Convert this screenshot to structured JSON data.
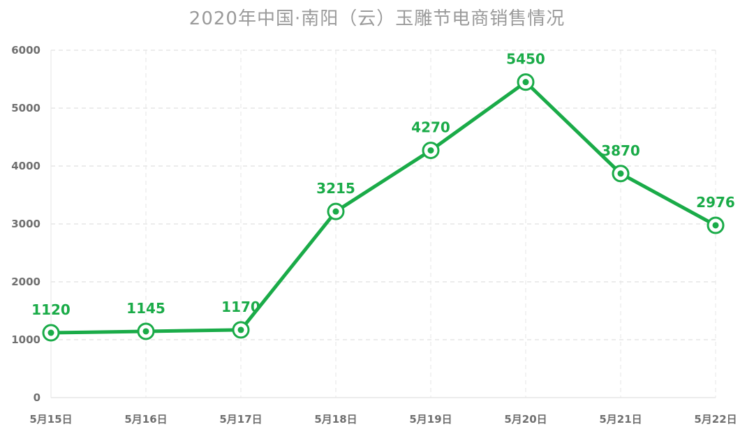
{
  "chart_data": {
    "type": "line",
    "title": "2020年中国·南阳（云）玉雕节电商销售情况",
    "xlabel": "",
    "ylabel": "",
    "categories": [
      "5月15日",
      "5月16日",
      "5月17日",
      "5月18日",
      "5月19日",
      "5月20日",
      "5月21日",
      "5月22日"
    ],
    "series": [
      {
        "values": [
          1120,
          1145,
          1170,
          3215,
          4270,
          5450,
          3870,
          2976
        ]
      }
    ],
    "ylim": [
      0,
      6000
    ],
    "yticks": [
      "0",
      "1000",
      "2000",
      "3000",
      "4000",
      "5000",
      "6000"
    ],
    "grid": true,
    "legend": "none",
    "colors": {
      "line": "#1aab48",
      "label": "#1aab48",
      "grid": "#d9d9d9",
      "axis_text": "#6f6f6f",
      "title": "#9a9a9a"
    }
  }
}
